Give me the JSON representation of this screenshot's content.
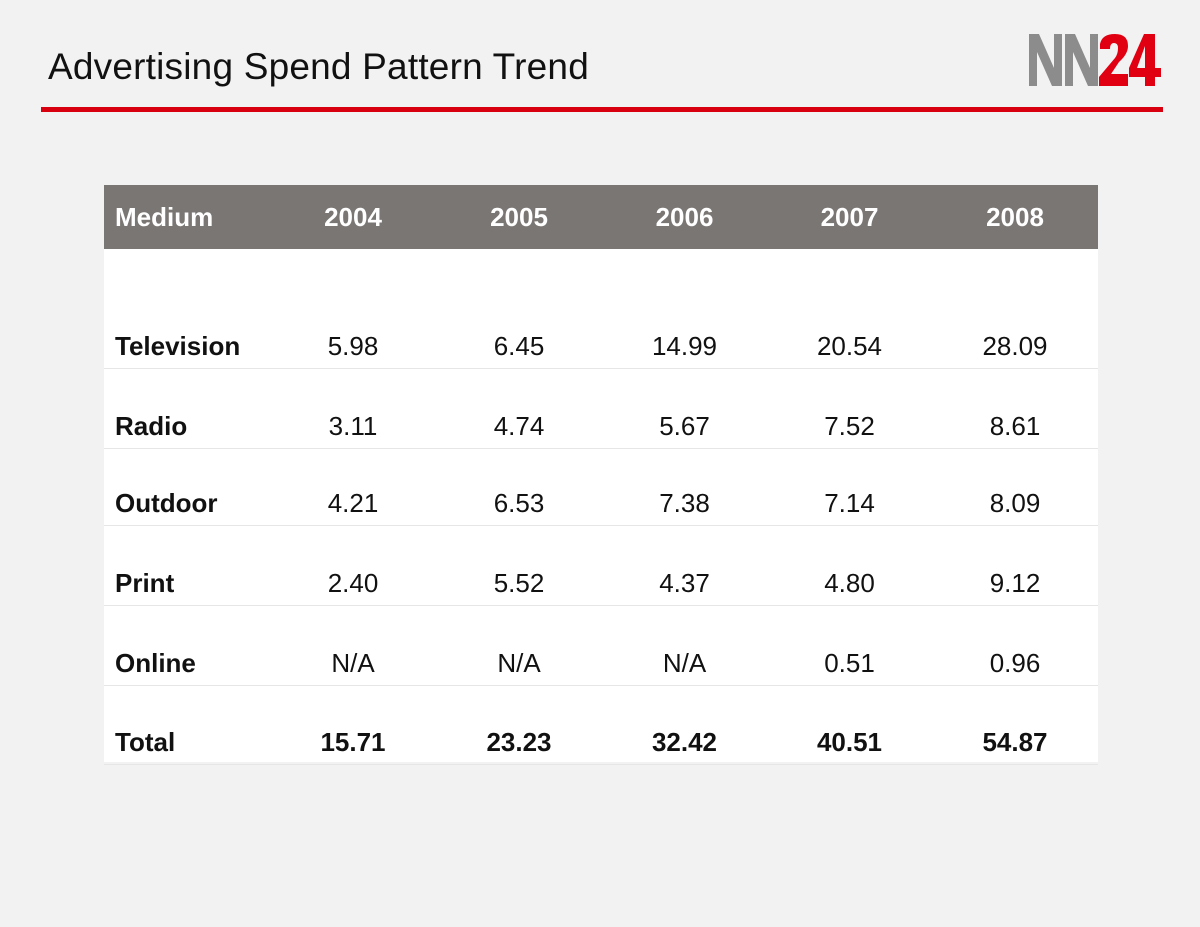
{
  "header": {
    "title": "Advertising Spend Pattern Trend",
    "logo_text": "NN24",
    "accent_color": "#d8000f"
  },
  "table": {
    "columns": [
      "Medium",
      "2004",
      "2005",
      "2006",
      "2007",
      "2008"
    ],
    "rows": [
      {
        "medium": "Television",
        "values": [
          "5.98",
          "6.45",
          "14.99",
          "20.54",
          "28.09"
        ]
      },
      {
        "medium": "Radio",
        "values": [
          "3.11",
          "4.74",
          "5.67",
          "7.52",
          "8.61"
        ]
      },
      {
        "medium": "Outdoor",
        "values": [
          "4.21",
          "6.53",
          "7.38",
          "7.14",
          "8.09"
        ]
      },
      {
        "medium": "Print",
        "values": [
          "2.40",
          "5.52",
          "4.37",
          "4.80",
          "9.12"
        ]
      },
      {
        "medium": "Online",
        "values": [
          "N/A",
          "N/A",
          "N/A",
          "0.51",
          "0.96"
        ]
      }
    ],
    "total": {
      "medium": "Total",
      "values": [
        "15.71",
        "23.23",
        "32.42",
        "40.51",
        "54.87"
      ]
    }
  }
}
